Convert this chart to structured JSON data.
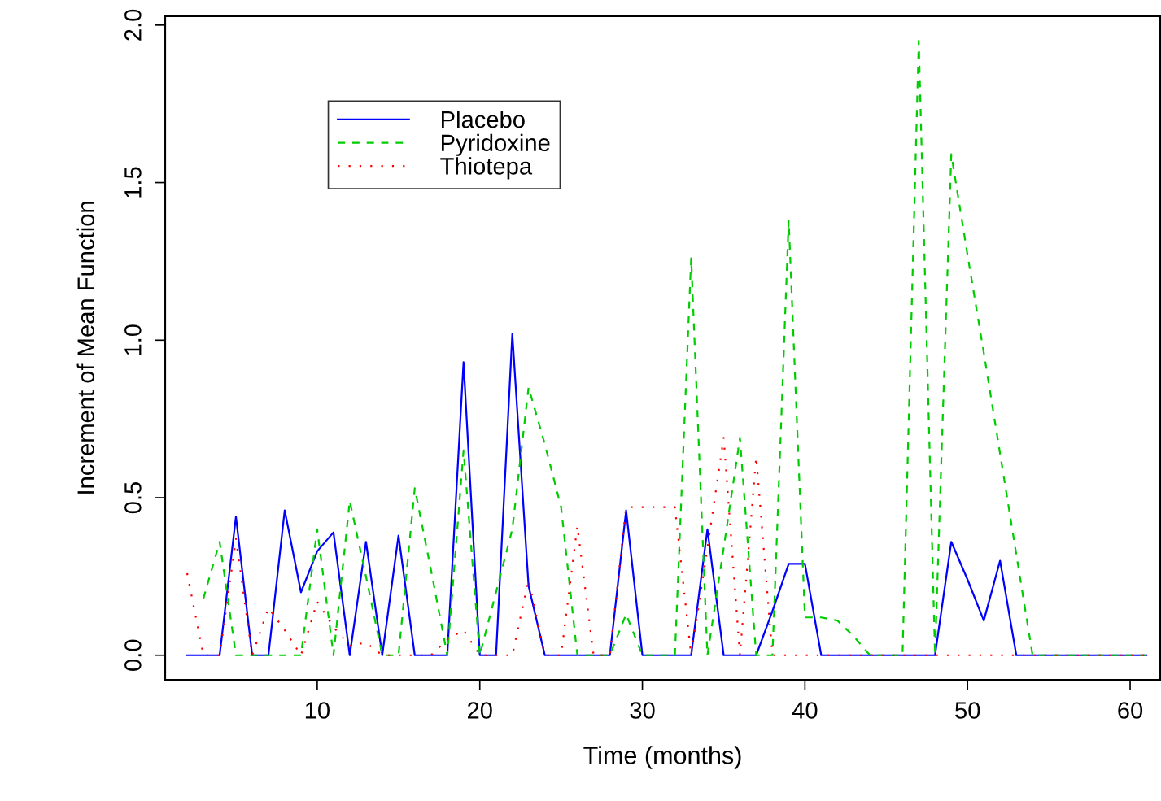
{
  "chart_data": {
    "type": "line",
    "xlabel": "Time (months)",
    "ylabel": "Increment of Mean Function",
    "xlim": [
      0.65,
      61.85
    ],
    "ylim": [
      -0.078,
      2.028
    ],
    "xticks": [
      10,
      20,
      30,
      40,
      50,
      60
    ],
    "yticks": [
      {
        "value": 0,
        "label": "0.0"
      },
      {
        "value": 0.5,
        "label": "0.5"
      },
      {
        "value": 1,
        "label": "1.0"
      },
      {
        "value": 1.5,
        "label": "1.5"
      },
      {
        "value": 2,
        "label": "2.0"
      }
    ],
    "grid": false,
    "legend": "top left",
    "marker": "none",
    "series": [
      {
        "name": "Placebo",
        "color": "#0000ff",
        "line_style": "solid",
        "x": [
          2,
          3,
          4,
          5,
          6,
          7,
          8,
          9,
          10,
          11,
          12,
          13,
          14,
          15,
          16,
          17,
          18,
          19,
          20,
          21,
          22,
          23,
          24,
          25,
          26,
          27,
          28,
          29,
          30,
          31,
          32,
          33,
          34,
          35,
          36,
          37,
          38,
          39,
          40,
          41,
          42,
          43,
          44,
          45,
          46,
          47,
          48,
          49,
          50,
          51,
          52,
          53,
          54,
          55,
          56,
          57,
          58,
          59,
          60,
          61
        ],
        "values": [
          0,
          0,
          0,
          0.44,
          0,
          0,
          0.46,
          0.2,
          0.33,
          0.39,
          0,
          0.36,
          0,
          0.38,
          0,
          0,
          0,
          0.93,
          0,
          0,
          1.02,
          0.22,
          0,
          0,
          0,
          0,
          0,
          0.46,
          0,
          0,
          0,
          0,
          0.4,
          0,
          0,
          0,
          0.14,
          0.29,
          0.29,
          0,
          0,
          0,
          0,
          0,
          0,
          0,
          0,
          0.36,
          0.24,
          0.11,
          0.3,
          0,
          0,
          0,
          0,
          0,
          0,
          0,
          0,
          0
        ]
      },
      {
        "name": "Pyridoxine",
        "color": "#00cd00",
        "line_style": "dashed",
        "x": [
          3,
          4,
          5,
          6,
          7,
          8,
          9,
          10,
          11,
          12,
          13,
          14,
          15,
          16,
          17,
          18,
          19,
          20,
          21,
          22,
          23,
          24,
          25,
          26,
          27,
          28,
          29,
          30,
          31,
          32,
          33,
          34,
          35,
          36,
          37,
          38,
          39,
          40,
          41,
          42,
          43,
          44,
          45,
          46,
          47,
          48,
          49,
          50,
          51,
          52,
          53,
          54,
          55,
          56,
          57,
          58,
          59,
          60,
          61
        ],
        "values": [
          0.18,
          0.36,
          0,
          0,
          0,
          0,
          0,
          0.4,
          0,
          0.49,
          0.25,
          0,
          0,
          0.53,
          0.27,
          0,
          0.65,
          0,
          0.2,
          0.4,
          0.85,
          0.67,
          0.47,
          0,
          0,
          0,
          0.13,
          0,
          0,
          0,
          1.26,
          0,
          0.34,
          0.69,
          0,
          0,
          1.38,
          0.12,
          0.12,
          0.11,
          0.06,
          0,
          0,
          0,
          1.95,
          0,
          1.59,
          1.27,
          0.96,
          0.64,
          0.32,
          0,
          0,
          0,
          0,
          0,
          0,
          0,
          0
        ]
      },
      {
        "name": "Thiotepa",
        "color": "#ff0000",
        "line_style": "dotted",
        "x": [
          2,
          3,
          4,
          5,
          6,
          7,
          8,
          9,
          10,
          11,
          12,
          13,
          14,
          15,
          16,
          17,
          18,
          19,
          20,
          21,
          22,
          23,
          24,
          25,
          26,
          27,
          28,
          29,
          30,
          31,
          32,
          33,
          34,
          35,
          36,
          37,
          38,
          39,
          40,
          41,
          42,
          43,
          44,
          45,
          46,
          47,
          48,
          49,
          50,
          51,
          52,
          53,
          54,
          55,
          56,
          57,
          58,
          59,
          60,
          61
        ],
        "values": [
          0.26,
          0,
          0,
          0.37,
          0,
          0.15,
          0.08,
          0,
          0.17,
          0.09,
          0.03,
          0.04,
          0,
          0,
          0,
          0,
          0.05,
          0.08,
          0,
          0,
          0,
          0.24,
          0,
          0,
          0.41,
          0,
          0,
          0.47,
          0.47,
          0.47,
          0.47,
          0,
          0.34,
          0.69,
          0,
          0.63,
          0,
          0,
          0,
          0,
          0,
          0,
          0,
          0,
          0,
          0,
          0,
          0,
          0,
          0,
          0,
          0,
          0,
          0,
          0,
          0,
          0,
          0,
          0,
          0
        ]
      }
    ]
  }
}
